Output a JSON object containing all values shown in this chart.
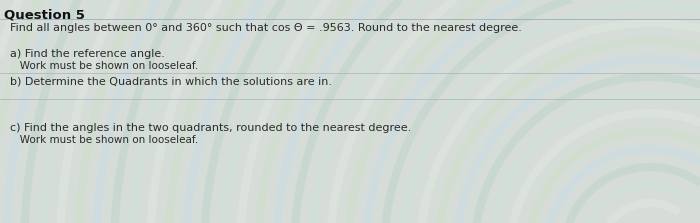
{
  "title": "Question 5",
  "line1": "Find all angles between 0° and 360° such that cos Θ = .9563. Round to the nearest degree.",
  "section_a_header": "a) Find the reference angle.",
  "section_a_sub": "   Work must be shown on looseleaf.",
  "section_b": "b) Determine the Quadrants in which the solutions are in.",
  "section_c_header": "c) Find the angles in the two quadrants, rounded to the nearest degree.",
  "section_c_sub": "   Work must be shown on looseleaf.",
  "bg_color": "#d6ddd8",
  "text_color": "#2a2a2a",
  "title_color": "#111111",
  "divider_color": "#8899aa",
  "font_size_title": 9.5,
  "font_size_body": 8.0,
  "font_size_sub": 7.5
}
